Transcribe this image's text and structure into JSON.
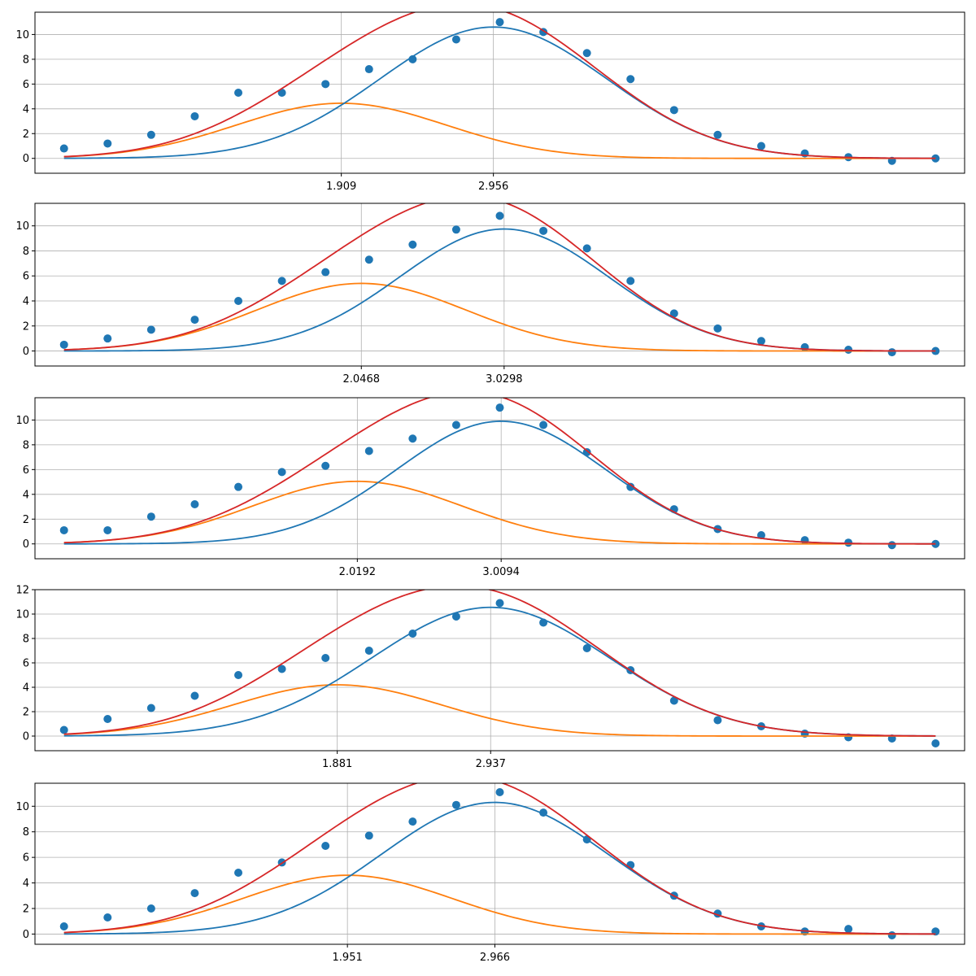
{
  "chart_data": [
    {
      "type": "scatter",
      "title": "",
      "xlabel": "",
      "ylabel": "",
      "xlim": [
        -0.2,
        6.2
      ],
      "ylim": [
        -1.2,
        11.8
      ],
      "x_ticks": [
        1.909,
        2.956
      ],
      "x_tick_labels": [
        "1.909",
        "2.956"
      ],
      "y_ticks": [
        0,
        2,
        4,
        6,
        8,
        10
      ],
      "y_tick_labels": [
        "0",
        "2",
        "4",
        "6",
        "8",
        "10"
      ],
      "grid": true,
      "legend": "none",
      "series": [
        {
          "kind": "scatter",
          "color": "#1f77b4",
          "x": [
            0.0,
            0.3,
            0.6,
            0.9,
            1.2,
            1.5,
            1.8,
            2.1,
            2.4,
            2.7,
            3.0,
            3.3,
            3.6,
            3.9,
            4.2,
            4.5,
            4.8,
            5.1,
            5.4,
            5.7,
            6.0
          ],
          "y": [
            0.8,
            1.2,
            1.9,
            3.4,
            5.3,
            5.3,
            6.0,
            7.2,
            8.0,
            9.6,
            11.0,
            10.2,
            8.5,
            6.4,
            3.9,
            1.9,
            1.0,
            0.4,
            0.1,
            -0.2,
            0.0
          ]
        },
        {
          "kind": "gaussian",
          "color": "#ff7f0e",
          "amplitude": 4.45,
          "center": 1.909,
          "sigma": 0.72
        },
        {
          "kind": "gaussian",
          "color": "#1f77b4",
          "amplitude": 10.6,
          "center": 2.956,
          "sigma": 0.78
        },
        {
          "kind": "sum",
          "color": "#d62728"
        }
      ]
    },
    {
      "type": "scatter",
      "title": "",
      "xlabel": "",
      "ylabel": "",
      "xlim": [
        -0.2,
        6.2
      ],
      "ylim": [
        -1.2,
        11.8
      ],
      "x_ticks": [
        2.0468,
        3.0298
      ],
      "x_tick_labels": [
        "2.0468",
        "3.0298"
      ],
      "y_ticks": [
        0,
        2,
        4,
        6,
        8,
        10
      ],
      "y_tick_labels": [
        "0",
        "2",
        "4",
        "6",
        "8",
        "10"
      ],
      "grid": true,
      "legend": "none",
      "series": [
        {
          "kind": "scatter",
          "color": "#1f77b4",
          "x": [
            0.0,
            0.3,
            0.6,
            0.9,
            1.2,
            1.5,
            1.8,
            2.1,
            2.4,
            2.7,
            3.0,
            3.3,
            3.6,
            3.9,
            4.2,
            4.5,
            4.8,
            5.1,
            5.4,
            5.7,
            6.0
          ],
          "y": [
            0.5,
            1.0,
            1.7,
            2.5,
            4.0,
            5.6,
            6.3,
            7.3,
            8.5,
            9.7,
            10.8,
            9.6,
            8.2,
            5.6,
            3.0,
            1.8,
            0.8,
            0.3,
            0.1,
            -0.1,
            0.0
          ]
        },
        {
          "kind": "gaussian",
          "color": "#ff7f0e",
          "amplitude": 5.4,
          "center": 2.0468,
          "sigma": 0.72
        },
        {
          "kind": "gaussian",
          "color": "#1f77b4",
          "amplitude": 9.75,
          "center": 3.0298,
          "sigma": 0.72
        },
        {
          "kind": "sum",
          "color": "#d62728"
        }
      ]
    },
    {
      "type": "scatter",
      "title": "",
      "xlabel": "",
      "ylabel": "",
      "xlim": [
        -0.2,
        6.2
      ],
      "ylim": [
        -1.2,
        11.8
      ],
      "x_ticks": [
        2.0192,
        3.0094
      ],
      "x_tick_labels": [
        "2.0192",
        "3.0094"
      ],
      "y_ticks": [
        0,
        2,
        4,
        6,
        8,
        10
      ],
      "y_tick_labels": [
        "0",
        "2",
        "4",
        "6",
        "8",
        "10"
      ],
      "grid": true,
      "legend": "none",
      "series": [
        {
          "kind": "scatter",
          "color": "#1f77b4",
          "x": [
            0.0,
            0.3,
            0.6,
            0.9,
            1.2,
            1.5,
            1.8,
            2.1,
            2.4,
            2.7,
            3.0,
            3.3,
            3.6,
            3.9,
            4.2,
            4.5,
            4.8,
            5.1,
            5.4,
            5.7,
            6.0
          ],
          "y": [
            1.1,
            1.1,
            2.2,
            3.2,
            4.6,
            5.8,
            6.3,
            7.5,
            8.5,
            9.6,
            11.0,
            9.6,
            7.4,
            4.6,
            2.8,
            1.2,
            0.7,
            0.3,
            0.1,
            -0.1,
            0.0
          ]
        },
        {
          "kind": "gaussian",
          "color": "#ff7f0e",
          "amplitude": 5.05,
          "center": 2.0192,
          "sigma": 0.72
        },
        {
          "kind": "gaussian",
          "color": "#1f77b4",
          "amplitude": 9.9,
          "center": 3.0094,
          "sigma": 0.72
        },
        {
          "kind": "sum",
          "color": "#d62728"
        }
      ]
    },
    {
      "type": "scatter",
      "title": "",
      "xlabel": "",
      "ylabel": "",
      "xlim": [
        -0.2,
        6.2
      ],
      "ylim": [
        -1.2,
        12.0
      ],
      "x_ticks": [
        1.881,
        2.937
      ],
      "x_tick_labels": [
        "1.881",
        "2.937"
      ],
      "y_ticks": [
        0,
        2,
        4,
        6,
        8,
        10,
        12
      ],
      "y_tick_labels": [
        "0",
        "2",
        "4",
        "6",
        "8",
        "10",
        "12"
      ],
      "grid": true,
      "legend": "none",
      "series": [
        {
          "kind": "scatter",
          "color": "#1f77b4",
          "x": [
            0.0,
            0.3,
            0.6,
            0.9,
            1.2,
            1.5,
            1.8,
            2.1,
            2.4,
            2.7,
            3.0,
            3.3,
            3.6,
            3.9,
            4.2,
            4.5,
            4.8,
            5.1,
            5.4,
            5.7,
            6.0
          ],
          "y": [
            0.5,
            1.4,
            2.3,
            3.3,
            5.0,
            5.5,
            6.4,
            7.0,
            8.4,
            9.8,
            10.9,
            9.3,
            7.2,
            5.4,
            2.9,
            1.3,
            0.8,
            0.2,
            -0.1,
            -0.2,
            -0.6
          ]
        },
        {
          "kind": "gaussian",
          "color": "#ff7f0e",
          "amplitude": 4.2,
          "center": 1.881,
          "sigma": 0.72
        },
        {
          "kind": "gaussian",
          "color": "#1f77b4",
          "amplitude": 10.55,
          "center": 2.937,
          "sigma": 0.82
        },
        {
          "kind": "sum",
          "color": "#d62728"
        }
      ]
    },
    {
      "type": "scatter",
      "title": "",
      "xlabel": "",
      "ylabel": "",
      "xlim": [
        -0.2,
        6.2
      ],
      "ylim": [
        -0.8,
        11.8
      ],
      "x_ticks": [
        1.951,
        2.966
      ],
      "x_tick_labels": [
        "1.951",
        "2.966"
      ],
      "y_ticks": [
        0,
        2,
        4,
        6,
        8,
        10
      ],
      "y_tick_labels": [
        "0",
        "2",
        "4",
        "6",
        "8",
        "10"
      ],
      "grid": true,
      "legend": "none",
      "series": [
        {
          "kind": "scatter",
          "color": "#1f77b4",
          "x": [
            0.0,
            0.3,
            0.6,
            0.9,
            1.2,
            1.5,
            1.8,
            2.1,
            2.4,
            2.7,
            3.0,
            3.3,
            3.6,
            3.9,
            4.2,
            4.5,
            4.8,
            5.1,
            5.4,
            5.7,
            6.0
          ],
          "y": [
            0.6,
            1.3,
            2.0,
            3.2,
            4.8,
            5.6,
            6.9,
            7.7,
            8.8,
            10.1,
            11.1,
            9.5,
            7.4,
            5.4,
            3.0,
            1.6,
            0.6,
            0.2,
            0.4,
            -0.1,
            0.2
          ]
        },
        {
          "kind": "gaussian",
          "color": "#ff7f0e",
          "amplitude": 4.6,
          "center": 1.951,
          "sigma": 0.72
        },
        {
          "kind": "gaussian",
          "color": "#1f77b4",
          "amplitude": 10.3,
          "center": 2.966,
          "sigma": 0.78
        },
        {
          "kind": "sum",
          "color": "#d62728"
        }
      ]
    }
  ]
}
